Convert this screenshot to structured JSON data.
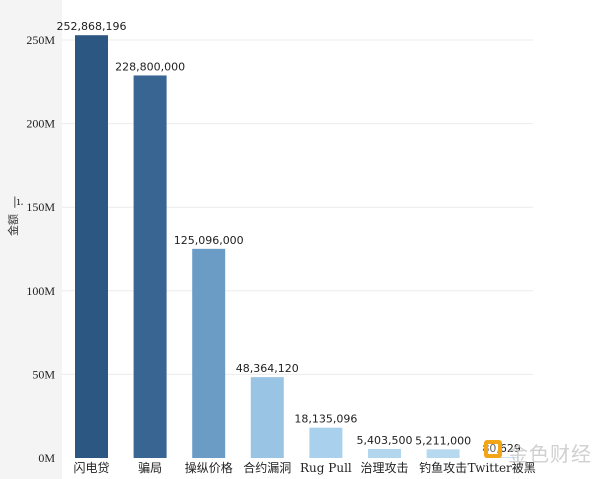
{
  "chart_data": {
    "type": "bar",
    "title": "",
    "xlabel": "",
    "ylabel": "金额",
    "ylim": [
      0,
      260000000
    ],
    "yticks": [
      0,
      50000000,
      100000000,
      150000000,
      200000000,
      250000000
    ],
    "ytick_labels": [
      "0M",
      "50M",
      "100M",
      "150M",
      "200M",
      "250M"
    ],
    "grid": true,
    "categories": [
      "闪电贷",
      "骗局",
      "操纵价格",
      "合约漏洞",
      "Rug Pull",
      "治理攻击",
      "钓鱼攻击",
      "Twitter被黑"
    ],
    "values": [
      252868196,
      228800000,
      125096000,
      48364120,
      18135096,
      5403500,
      5211000,
      80629
    ],
    "value_labels": [
      "252,868,196",
      "228,800,000",
      "125,096,000",
      "48,364,120",
      "18,135,096",
      "5,403,500",
      "5,211,000",
      "80,629"
    ],
    "colors": [
      "#2c5783",
      "#396592",
      "#6a9cc5",
      "#9ac4e4",
      "#a9d0ed",
      "#b3d6ef",
      "#b7d9f0",
      "#bddcf1"
    ]
  },
  "watermark": {
    "text": "金色财经"
  }
}
